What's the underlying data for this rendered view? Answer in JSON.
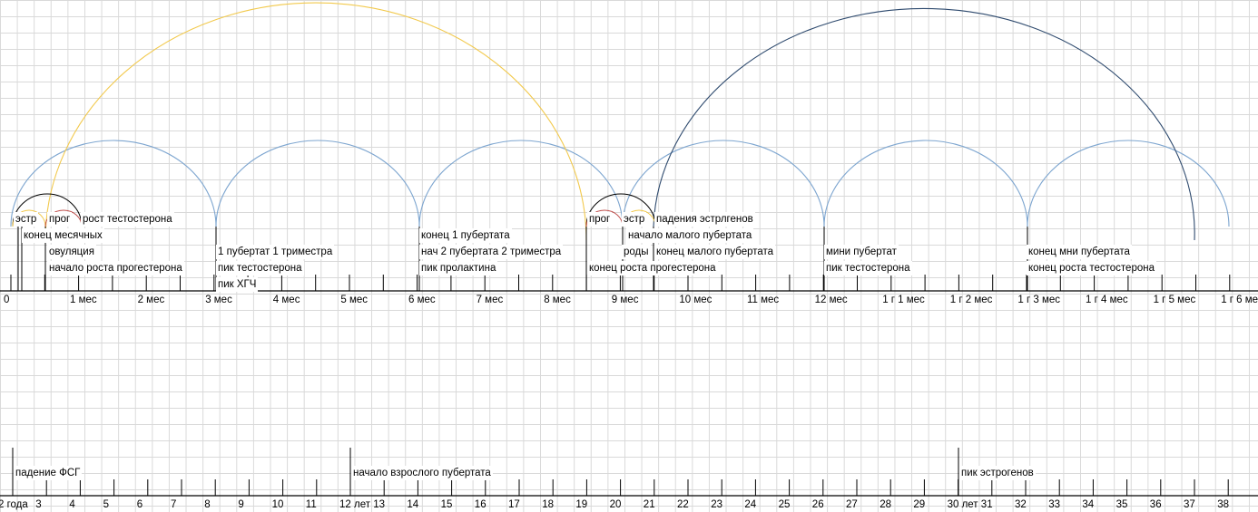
{
  "timeline_top": {
    "ticks": [
      "0",
      "1 мес",
      "2 мес",
      "3 мес",
      "4 мес",
      "5 мес",
      "6 мес",
      "7 мес",
      "8 мес",
      "9 мес",
      "10 мес",
      "11 мес",
      "12 мес",
      "1 г 1 мес",
      "1 г 2 мес",
      "1 г 3 мес",
      "1 г 4 мес",
      "1 г 5 мес",
      "1 г 6 мес"
    ],
    "colors": {
      "blue": "#7ea6d0",
      "yellow": "#f2c94c",
      "dark_blue": "#2e4a6e",
      "red": "#c0504d",
      "black": "#000000"
    },
    "labels": {
      "estr1": "эстр",
      "prog1": "прог",
      "rost_testosterona": "рост тестостерона",
      "konec_mesyachnyh": "конец месячных",
      "ovulyaciya": "овуляция",
      "nachalo_rosta_progesterona": "начало роста прогестерона",
      "p1_trimestr": "1 пубертат 1 триместра",
      "pik_testosterona_1": "пик тестостерона",
      "pik_hgch": "пик ХГЧ",
      "konec_1_pubertata": "конец 1 пубертата",
      "nach_2_pubertata": "нач 2 пубертата 2 триместра",
      "pik_prolaktina": "пик пролактина",
      "prog2": "прог",
      "estr2": "эстр",
      "padeniya_estrogenov": "падения эстрлгенов",
      "nachalo_malogo_pubertata": "начало малого пубертата",
      "rody": "роды",
      "konec_malogo_pubertata": "конец малого пубертата",
      "konec_rosta_progesterona": "конец роста прогестерона",
      "mini_pubertat": "мини пубертат",
      "pik_testosterona_2": "пик тестостерона",
      "konec_mni_pubertata": "конец мни пубертата",
      "konec_rosta_testosterona": "конец роста тестостерона"
    }
  },
  "timeline_bottom": {
    "ticks": [
      "2 года",
      "3",
      "4",
      "5",
      "6",
      "7",
      "8",
      "9",
      "10",
      "11",
      "12 лет",
      "13",
      "14",
      "15",
      "16",
      "17",
      "18",
      "19",
      "20",
      "21",
      "22",
      "23",
      "24",
      "25",
      "26",
      "27",
      "28",
      "29",
      "30 лет",
      "31",
      "32",
      "33",
      "34",
      "35",
      "36",
      "37",
      "38"
    ],
    "labels": {
      "padenie_fsg": "падение ФСГ",
      "nachalo_vzroslogo_pubertata": "начало взрослого пубертата",
      "pik_estrogenov": "пик эстрогенов"
    }
  }
}
